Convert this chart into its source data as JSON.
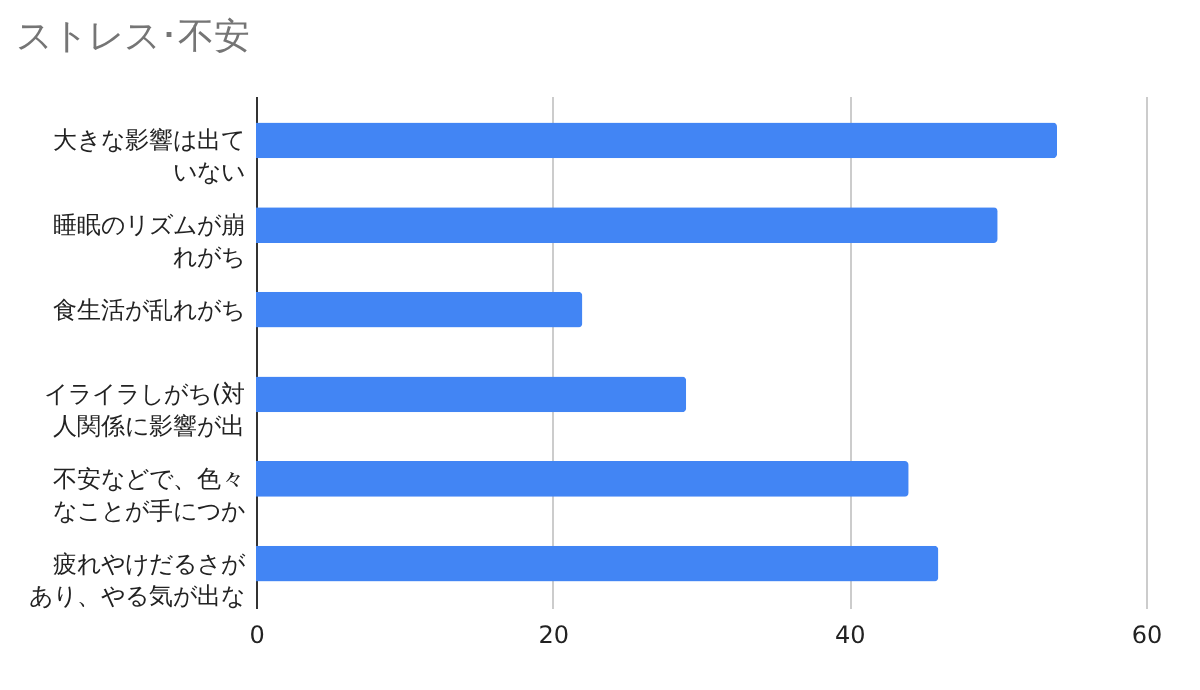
{
  "chart_data": {
    "type": "bar",
    "orientation": "horizontal",
    "title": "ストレス･不安",
    "categories": [
      "大きな影響は出ていない",
      "睡眠のリズムが崩れがち",
      "食生活が乱れがち",
      "イライラしがち(対人関係に影響が出",
      "不安などで、色々なことが手につか",
      "疲れやけだるさがあり、やる気が出な"
    ],
    "values": [
      54,
      50,
      22,
      29,
      44,
      46
    ],
    "color": "#4285f4",
    "xlim": [
      0,
      60
    ],
    "xticks": [
      0,
      20,
      40,
      60
    ],
    "grid": "x"
  }
}
